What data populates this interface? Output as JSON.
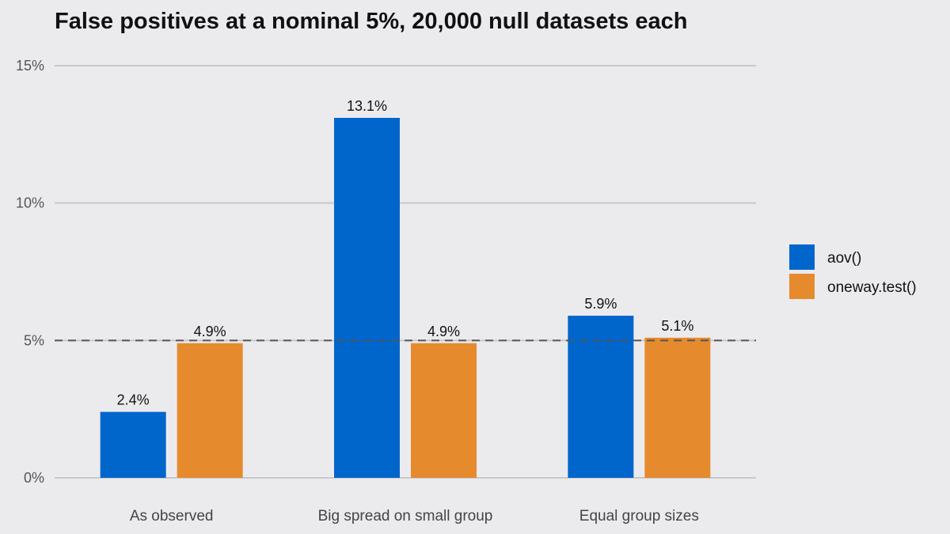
{
  "chart_data": {
    "type": "bar",
    "title": "False positives at a nominal 5%, 20,000 null datasets each",
    "categories": [
      "As observed",
      "Big spread on small group",
      "Equal group sizes"
    ],
    "series": [
      {
        "name": "aov()",
        "values": [
          2.4,
          13.1,
          5.9
        ],
        "labels": [
          "2.4%",
          "13.1%",
          "5.9%"
        ],
        "color": "#0066cc"
      },
      {
        "name": "oneway.test()",
        "values": [
          4.9,
          4.9,
          5.1
        ],
        "labels": [
          "4.9%",
          "4.9%",
          "5.1%"
        ],
        "color": "#e68a2e"
      }
    ],
    "yticks": [
      0,
      5,
      10,
      15
    ],
    "ytick_labels": [
      "0%",
      "5%",
      "10%",
      "15%"
    ],
    "ylim": [
      0,
      15
    ],
    "reference_line": 5,
    "grid": true,
    "legend_position": "right"
  }
}
